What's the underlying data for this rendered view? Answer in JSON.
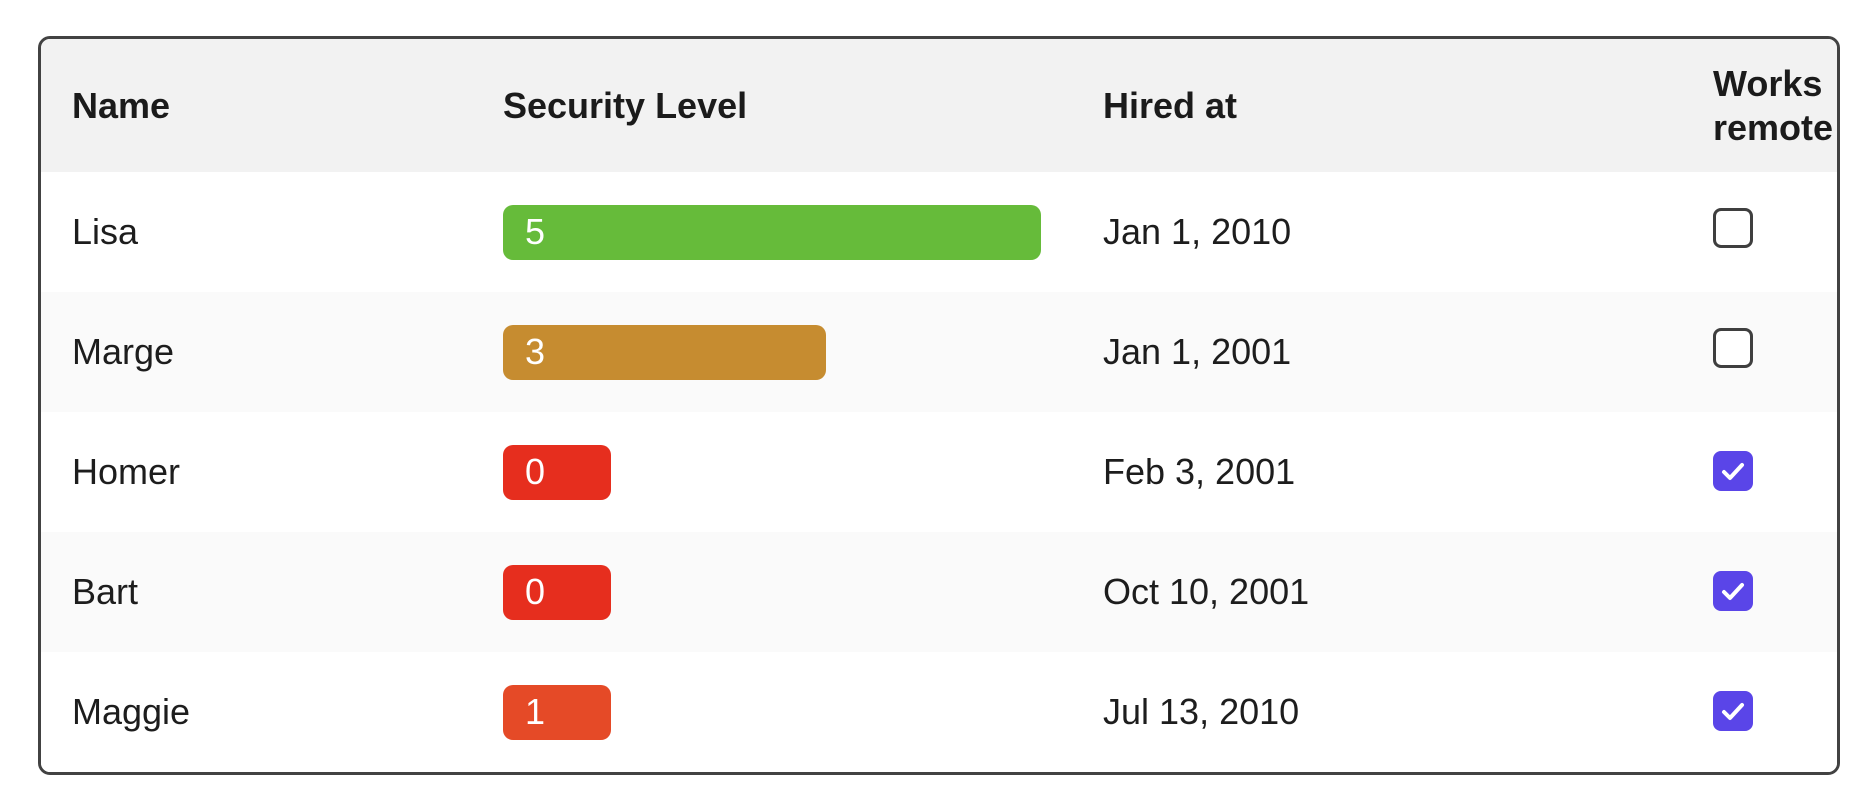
{
  "table": {
    "columns": [
      {
        "key": "name",
        "label": "Name"
      },
      {
        "key": "security_level",
        "label": "Security Level"
      },
      {
        "key": "hired_at",
        "label": "Hired at"
      },
      {
        "key": "works_remote",
        "label": "Works remote"
      }
    ],
    "security_scale_max": 5,
    "rows": [
      {
        "name": "Lisa",
        "security_level": 5,
        "security_color": "#66bb3a",
        "hired_at": "Jan 1, 2010",
        "works_remote": false
      },
      {
        "name": "Marge",
        "security_level": 3,
        "security_color": "#c68c30",
        "hired_at": "Jan 1, 2001",
        "works_remote": false
      },
      {
        "name": "Homer",
        "security_level": 0,
        "security_color": "#e62e1e",
        "hired_at": "Feb 3, 2001",
        "works_remote": true
      },
      {
        "name": "Bart",
        "security_level": 0,
        "security_color": "#e62e1e",
        "hired_at": "Oct 10, 2001",
        "works_remote": true
      },
      {
        "name": "Maggie",
        "security_level": 1,
        "security_color": "#e54a27",
        "hired_at": "Jul 13, 2010",
        "works_remote": true
      }
    ],
    "colors": {
      "header_background": "#f2f2f2",
      "stripe_background": "#fafafa",
      "border": "#424242",
      "checkbox_checked": "#5a45e8",
      "checkbox_border": "#3f3f3f",
      "bar_text": "#ffffff",
      "text": "#1d1d1d"
    }
  }
}
